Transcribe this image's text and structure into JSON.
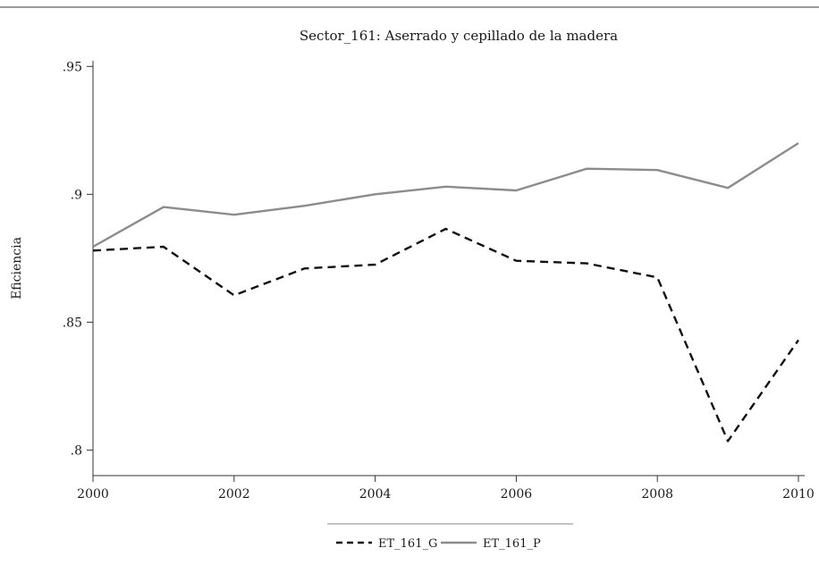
{
  "chart_data": {
    "type": "line",
    "title": "Sector_161: Aserrado y cepillado de la madera",
    "ylabel": "Eficiencia",
    "xlabel": "",
    "x": [
      2000,
      2001,
      2002,
      2003,
      2004,
      2005,
      2006,
      2007,
      2008,
      2009,
      2010
    ],
    "x_ticks": [
      2000,
      2002,
      2004,
      2006,
      2008,
      2010
    ],
    "x_tick_labels": [
      "2000",
      "2002",
      "2004",
      "2006",
      "2008",
      "2010"
    ],
    "y_ticks": [
      0.8,
      0.85,
      0.9,
      0.95
    ],
    "y_tick_labels": [
      ".8",
      ".85",
      ".9",
      ".95"
    ],
    "xlim": [
      2000,
      2010
    ],
    "ylim": [
      0.79,
      0.955
    ],
    "grid": false,
    "legend_position": "bottom",
    "series": [
      {
        "name": "ET_161_G",
        "style": "dashed",
        "color": "#111111",
        "values": [
          0.878,
          0.8795,
          0.8605,
          0.871,
          0.8725,
          0.8865,
          0.874,
          0.873,
          0.8675,
          0.8035,
          0.843
        ]
      },
      {
        "name": "ET_161_P",
        "style": "solid",
        "color": "#8c8c8c",
        "values": [
          0.8795,
          0.895,
          0.892,
          0.8955,
          0.9,
          0.903,
          0.9015,
          0.91,
          0.9095,
          0.9025,
          0.92
        ]
      }
    ]
  }
}
